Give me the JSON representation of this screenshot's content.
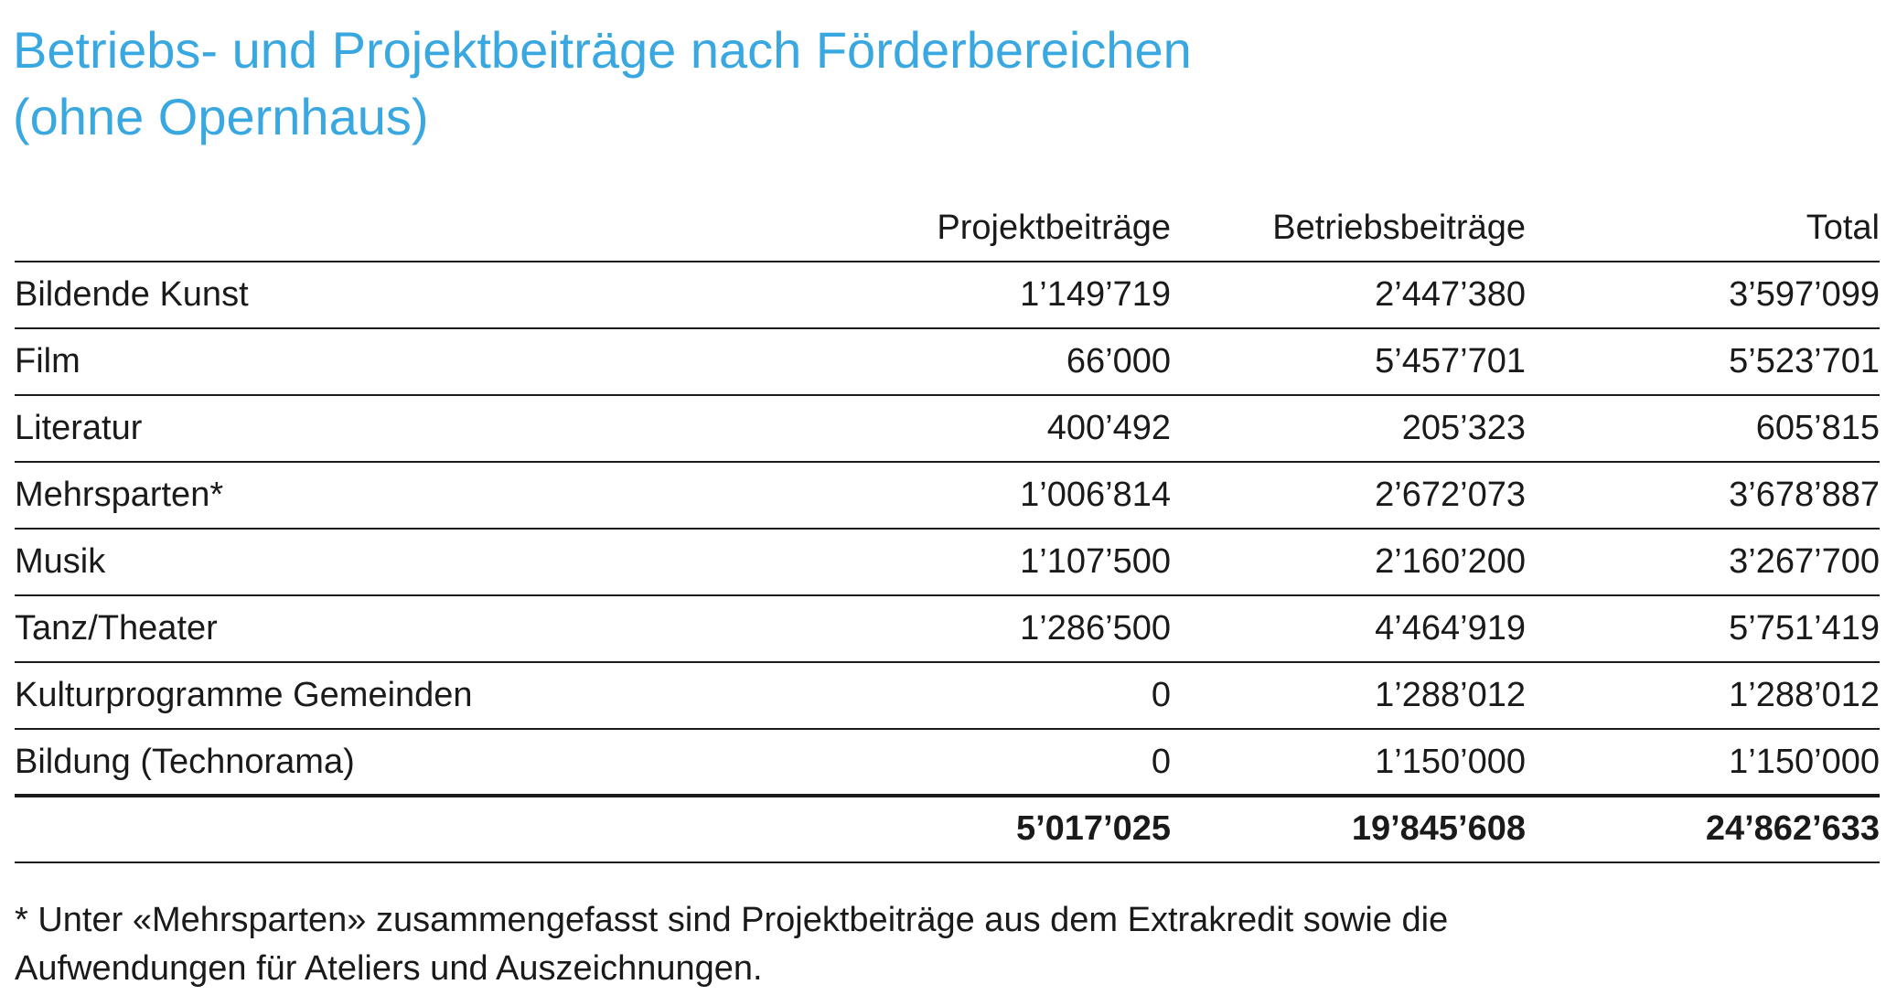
{
  "title": [
    "Betriebs- und Projektbeiträge nach Förderbereichen",
    "(ohne Opernhaus)"
  ],
  "table": {
    "header": [
      "Projektbeiträge",
      "Betriebsbeiträge",
      "Total"
    ],
    "rows": [
      [
        "Bildende Kunst",
        "1’149’719",
        "2’447’380",
        "3’597’099"
      ],
      [
        "Film",
        "66’000",
        "5’457’701",
        "5’523’701"
      ],
      [
        "Literatur",
        "400’492",
        "205’323",
        "605’815"
      ],
      [
        "Mehrsparten*",
        "1’006’814",
        "2’672’073",
        "3’678’887"
      ],
      [
        "Musik",
        "1’107’500",
        "2’160’200",
        "3’267’700"
      ],
      [
        "Tanz/Theater",
        "1’286’500",
        "4’464’919",
        "5’751’419"
      ],
      [
        "Kulturprogramme Gemeinden",
        "0",
        "1’288’012",
        "1’288’012"
      ],
      [
        "Bildung (Technorama)",
        "0",
        "1’150’000",
        "1’150’000"
      ]
    ],
    "totals": [
      "5’017’025",
      "19’845’608",
      "24’862’633"
    ]
  },
  "footnote": [
    "* Unter «Mehrsparten» zusammengefasst sind Projektbeiträge aus dem Extrakredit sowie die",
    "Aufwendungen für Ateliers und Auszeichnungen."
  ]
}
